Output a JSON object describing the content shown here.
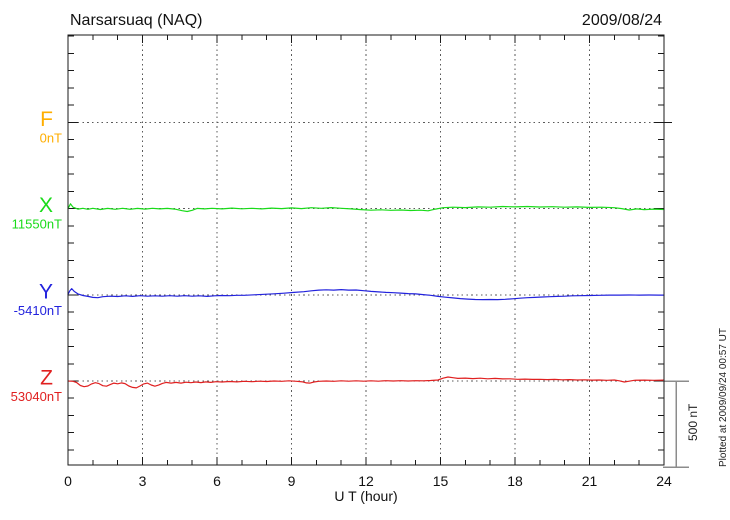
{
  "header": {
    "station_title": "Narsarsuaq (NAQ)",
    "date": "2009/08/24"
  },
  "footer_note": "Plotted at 2009/09/24 00:57 UT",
  "scale_bar": {
    "label": "500 nT",
    "span_nT": 500
  },
  "colors": {
    "frame": "#1a1a1a",
    "grid": "#5a5a5a",
    "scale_bar": "#8c8c8c",
    "text": "#111111",
    "f_channel": "#FFAE00",
    "x_channel": "#19DB19",
    "y_channel": "#2222DD",
    "z_channel": "#E02020"
  },
  "chart_data": {
    "type": "line",
    "title": "Narsarsuaq (NAQ)",
    "date": "2009/08/24",
    "xlabel": "U T (hour)",
    "xlim": [
      0,
      24
    ],
    "x_major_ticks": [
      0,
      3,
      6,
      9,
      12,
      15,
      18,
      21,
      24
    ],
    "x_minor_tick_every_hours": 1,
    "y_minor_tick_nT": 100,
    "scale_division_nT": 500,
    "grid": "dotted vertical lines every 3 h; dotted horizontal baseline per channel; legend none",
    "series": [
      {
        "name": "F",
        "baseline_label": "0nT",
        "baseline_nT": 0,
        "color": "#FFAE00",
        "row": 0,
        "points": []
      },
      {
        "name": "X",
        "baseline_label": "11550nT",
        "baseline_nT": 11550,
        "color": "#19DB19",
        "row": 1,
        "points": [
          [
            0,
            0
          ],
          [
            0.1,
            28
          ],
          [
            0.2,
            8
          ],
          [
            0.4,
            -3
          ],
          [
            0.6,
            2
          ],
          [
            0.8,
            -4
          ],
          [
            1.0,
            2
          ],
          [
            1.3,
            -5
          ],
          [
            1.6,
            1
          ],
          [
            1.9,
            -4
          ],
          [
            2.2,
            2
          ],
          [
            2.5,
            -4
          ],
          [
            2.8,
            1
          ],
          [
            3.1,
            -3
          ],
          [
            3.4,
            2
          ],
          [
            3.7,
            -2
          ],
          [
            4.0,
            1
          ],
          [
            4.3,
            -3
          ],
          [
            4.6,
            -12
          ],
          [
            4.8,
            -17
          ],
          [
            5.0,
            -10
          ],
          [
            5.2,
            1
          ],
          [
            5.5,
            -2
          ],
          [
            5.8,
            2
          ],
          [
            6.2,
            -2
          ],
          [
            6.6,
            3
          ],
          [
            7.0,
            -1
          ],
          [
            7.4,
            2
          ],
          [
            7.8,
            -2
          ],
          [
            8.2,
            3
          ],
          [
            8.6,
            0
          ],
          [
            9.0,
            4
          ],
          [
            9.4,
            0
          ],
          [
            9.8,
            5
          ],
          [
            10.2,
            2
          ],
          [
            10.6,
            6
          ],
          [
            11.0,
            2
          ],
          [
            11.4,
            -2
          ],
          [
            11.8,
            -6
          ],
          [
            12.2,
            -9
          ],
          [
            12.6,
            -7
          ],
          [
            13.0,
            -10
          ],
          [
            13.4,
            -8
          ],
          [
            13.8,
            -11
          ],
          [
            14.2,
            -9
          ],
          [
            14.5,
            -13
          ],
          [
            14.8,
            -3
          ],
          [
            15.1,
            5
          ],
          [
            15.5,
            8
          ],
          [
            16.0,
            6
          ],
          [
            16.5,
            10
          ],
          [
            17.0,
            8
          ],
          [
            17.5,
            12
          ],
          [
            18.0,
            10
          ],
          [
            18.5,
            12
          ],
          [
            19.0,
            9
          ],
          [
            19.5,
            11
          ],
          [
            20.0,
            8
          ],
          [
            20.5,
            10
          ],
          [
            21.0,
            7
          ],
          [
            21.5,
            8
          ],
          [
            22.0,
            5
          ],
          [
            22.3,
            0
          ],
          [
            22.6,
            -8
          ],
          [
            22.9,
            -2
          ],
          [
            23.2,
            -6
          ],
          [
            23.6,
            -3
          ],
          [
            24,
            -5
          ]
        ]
      },
      {
        "name": "Y",
        "baseline_label": "-5410nT",
        "baseline_nT": -5410,
        "color": "#2222DD",
        "row": 2,
        "points": [
          [
            0,
            2
          ],
          [
            0.07,
            22
          ],
          [
            0.15,
            36
          ],
          [
            0.25,
            20
          ],
          [
            0.4,
            5
          ],
          [
            0.6,
            -4
          ],
          [
            0.8,
            -9
          ],
          [
            1.0,
            -15
          ],
          [
            1.2,
            -17
          ],
          [
            1.4,
            -11
          ],
          [
            1.7,
            -8
          ],
          [
            2.0,
            -10
          ],
          [
            2.3,
            -6
          ],
          [
            2.6,
            -9
          ],
          [
            2.9,
            -5
          ],
          [
            3.2,
            -8
          ],
          [
            3.5,
            -6
          ],
          [
            3.8,
            -8
          ],
          [
            4.1,
            -5
          ],
          [
            4.4,
            -8
          ],
          [
            4.7,
            -5
          ],
          [
            5.0,
            -8
          ],
          [
            5.3,
            -6
          ],
          [
            5.6,
            -9
          ],
          [
            5.9,
            -6
          ],
          [
            6.2,
            -4
          ],
          [
            6.5,
            -5
          ],
          [
            6.8,
            -3
          ],
          [
            7.1,
            -3
          ],
          [
            7.5,
            0
          ],
          [
            7.9,
            3
          ],
          [
            8.3,
            6
          ],
          [
            8.7,
            9
          ],
          [
            9.1,
            14
          ],
          [
            9.5,
            18
          ],
          [
            9.8,
            23
          ],
          [
            10.1,
            27
          ],
          [
            10.4,
            29
          ],
          [
            10.7,
            27
          ],
          [
            11.0,
            30
          ],
          [
            11.3,
            27
          ],
          [
            11.6,
            28
          ],
          [
            11.9,
            24
          ],
          [
            12.2,
            20
          ],
          [
            12.5,
            17
          ],
          [
            12.8,
            14
          ],
          [
            13.1,
            12
          ],
          [
            13.4,
            10
          ],
          [
            13.7,
            7
          ],
          [
            14.0,
            5
          ],
          [
            14.3,
            1
          ],
          [
            14.6,
            -3
          ],
          [
            14.9,
            -9
          ],
          [
            15.2,
            -14
          ],
          [
            15.5,
            -18
          ],
          [
            15.8,
            -22
          ],
          [
            16.1,
            -25
          ],
          [
            16.4,
            -27
          ],
          [
            16.7,
            -28
          ],
          [
            17.0,
            -27
          ],
          [
            17.3,
            -28
          ],
          [
            17.6,
            -26
          ],
          [
            17.9,
            -23
          ],
          [
            18.2,
            -20
          ],
          [
            18.5,
            -17
          ],
          [
            18.8,
            -15
          ],
          [
            19.1,
            -13
          ],
          [
            19.4,
            -11
          ],
          [
            19.7,
            -9
          ],
          [
            20.0,
            -8
          ],
          [
            20.3,
            -6
          ],
          [
            20.6,
            -5
          ],
          [
            21.0,
            -4
          ],
          [
            21.4,
            -3
          ],
          [
            21.8,
            -2
          ],
          [
            22.2,
            -2
          ],
          [
            22.6,
            -1
          ],
          [
            23.0,
            -2
          ],
          [
            23.4,
            -1
          ],
          [
            23.8,
            -2
          ],
          [
            24,
            -2
          ]
        ]
      },
      {
        "name": "Z",
        "baseline_label": "53040nT",
        "baseline_nT": 53040,
        "color": "#E02020",
        "row": 3,
        "points": [
          [
            0,
            0
          ],
          [
            0.2,
            -2
          ],
          [
            0.35,
            -9
          ],
          [
            0.5,
            -26
          ],
          [
            0.65,
            -33
          ],
          [
            0.8,
            -29
          ],
          [
            0.95,
            -17
          ],
          [
            1.1,
            -10
          ],
          [
            1.25,
            -15
          ],
          [
            1.4,
            -27
          ],
          [
            1.55,
            -30
          ],
          [
            1.7,
            -21
          ],
          [
            1.85,
            -12
          ],
          [
            2.0,
            -16
          ],
          [
            2.15,
            -11
          ],
          [
            2.3,
            -15
          ],
          [
            2.45,
            -29
          ],
          [
            2.6,
            -37
          ],
          [
            2.75,
            -40
          ],
          [
            2.9,
            -29
          ],
          [
            3.05,
            -17
          ],
          [
            3.2,
            -12
          ],
          [
            3.35,
            -23
          ],
          [
            3.5,
            -30
          ],
          [
            3.65,
            -24
          ],
          [
            3.8,
            -14
          ],
          [
            3.95,
            -8
          ],
          [
            4.15,
            -12
          ],
          [
            4.35,
            -8
          ],
          [
            4.55,
            -12
          ],
          [
            4.75,
            -7
          ],
          [
            4.95,
            -10
          ],
          [
            5.15,
            -6
          ],
          [
            5.35,
            -9
          ],
          [
            5.55,
            -5
          ],
          [
            5.75,
            -8
          ],
          [
            5.95,
            -4
          ],
          [
            6.2,
            -6
          ],
          [
            6.5,
            -3
          ],
          [
            6.8,
            -5
          ],
          [
            7.1,
            -2
          ],
          [
            7.4,
            -4
          ],
          [
            7.7,
            -1
          ],
          [
            8.0,
            -3
          ],
          [
            8.3,
            0
          ],
          [
            8.6,
            -2
          ],
          [
            8.9,
            1
          ],
          [
            9.2,
            -2
          ],
          [
            9.45,
            -5
          ],
          [
            9.6,
            -11
          ],
          [
            9.75,
            -12
          ],
          [
            9.9,
            -6
          ],
          [
            10.1,
            -2
          ],
          [
            10.4,
            0
          ],
          [
            10.7,
            -2
          ],
          [
            11.0,
            1
          ],
          [
            11.3,
            -1
          ],
          [
            11.6,
            1
          ],
          [
            11.9,
            -1
          ],
          [
            12.2,
            1
          ],
          [
            12.5,
            -1
          ],
          [
            12.8,
            2
          ],
          [
            13.1,
            0
          ],
          [
            13.4,
            2
          ],
          [
            13.7,
            0
          ],
          [
            14.0,
            2
          ],
          [
            14.3,
            1
          ],
          [
            14.6,
            3
          ],
          [
            14.9,
            6
          ],
          [
            15.1,
            16
          ],
          [
            15.3,
            23
          ],
          [
            15.5,
            19
          ],
          [
            15.7,
            15
          ],
          [
            16.0,
            17
          ],
          [
            16.3,
            14
          ],
          [
            16.6,
            16
          ],
          [
            16.9,
            13
          ],
          [
            17.2,
            15
          ],
          [
            17.5,
            12
          ],
          [
            17.8,
            13
          ],
          [
            18.1,
            10
          ],
          [
            18.4,
            11
          ],
          [
            18.7,
            9
          ],
          [
            19.0,
            10
          ],
          [
            19.3,
            8
          ],
          [
            19.6,
            9
          ],
          [
            19.9,
            7
          ],
          [
            20.2,
            8
          ],
          [
            20.5,
            6
          ],
          [
            20.8,
            7
          ],
          [
            21.1,
            5
          ],
          [
            21.4,
            6
          ],
          [
            21.7,
            4
          ],
          [
            22.0,
            6
          ],
          [
            22.2,
            1
          ],
          [
            22.4,
            -6
          ],
          [
            22.6,
            -1
          ],
          [
            22.8,
            4
          ],
          [
            23.2,
            5
          ],
          [
            23.6,
            4
          ],
          [
            24,
            5
          ]
        ]
      }
    ]
  }
}
